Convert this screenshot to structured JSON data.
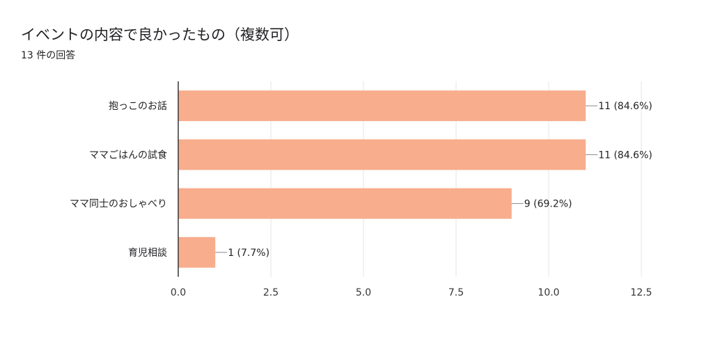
{
  "header": {
    "title": "イベントの内容で良かったもの（複数可）",
    "responses": "13 件の回答"
  },
  "chart_data": {
    "type": "bar",
    "orientation": "horizontal",
    "title": "イベントの内容で良かったもの（複数可）",
    "subtitle": "13 件の回答",
    "categories": [
      "抱っこのお話",
      "ママごはんの試食",
      "ママ同士のおしゃべり",
      "育児相談"
    ],
    "values": [
      11,
      11,
      9,
      1
    ],
    "data_labels": [
      "11 (84.6%)",
      "11 (84.6%)",
      "9 (69.2%)",
      "1 (7.7%)"
    ],
    "xlim": [
      0,
      12.5
    ],
    "xticks": [
      "0.0",
      "2.5",
      "5.0",
      "7.5",
      "10.0",
      "12.5"
    ],
    "bar_color": "#f8ad8c",
    "grid": true,
    "legend": "none"
  }
}
